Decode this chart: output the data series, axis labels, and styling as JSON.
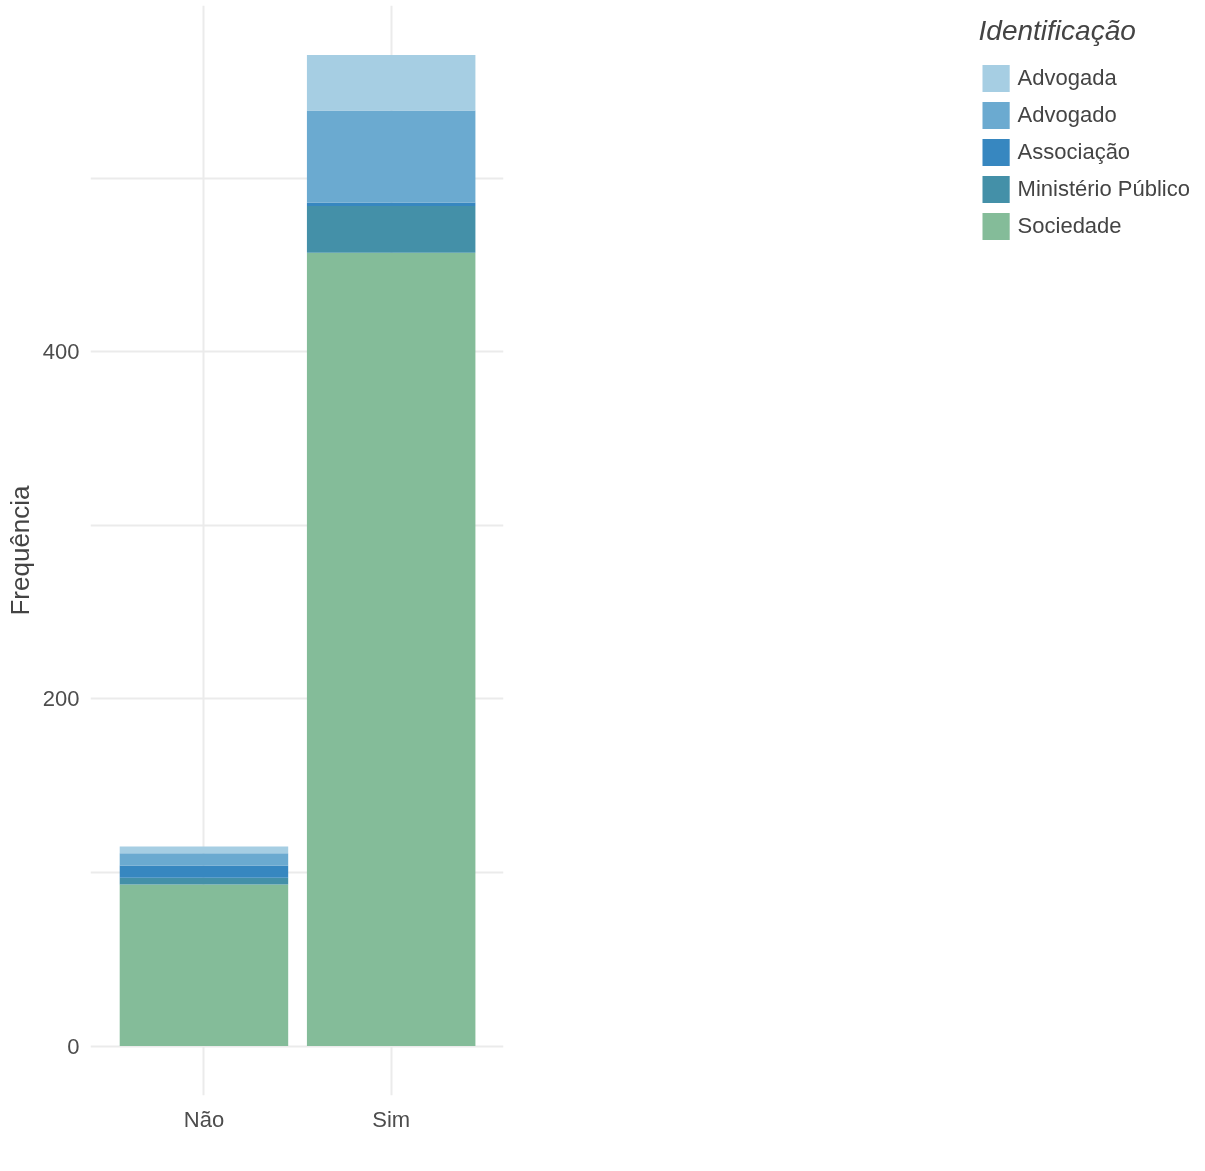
{
  "chart_data": {
    "type": "bar",
    "stacked": true,
    "ylabel": "Frequência",
    "legend_title": "Identificação",
    "legend": "right",
    "grid": true,
    "categories": [
      "Não",
      "Sim"
    ],
    "series": [
      {
        "name": "Sociedade",
        "color": "#84bc99",
        "values": [
          93,
          457
        ]
      },
      {
        "name": "Ministério Público",
        "color": "#4490a8",
        "values": [
          4,
          27
        ]
      },
      {
        "name": "Associação",
        "color": "#3787c0",
        "values": [
          7,
          2
        ]
      },
      {
        "name": "Advogado",
        "color": "#6baad0",
        "values": [
          7,
          53
        ]
      },
      {
        "name": "Advogada",
        "color": "#a6cee3",
        "values": [
          4,
          32
        ]
      }
    ],
    "ylim": [
      -28.5,
      599.5
    ],
    "yticks": [
      0,
      {
        "value": 100,
        "label": null
      },
      200,
      {
        "value": 300,
        "label": null
      },
      400,
      {
        "value": 500,
        "label": null
      }
    ]
  }
}
